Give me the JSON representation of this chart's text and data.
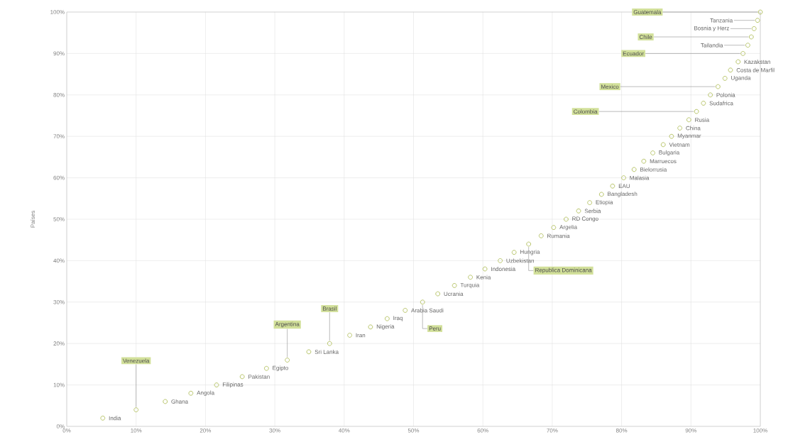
{
  "chart_data": {
    "type": "scatter",
    "ylabel": "Países",
    "xlim": [
      0,
      100
    ],
    "ylim": [
      0,
      100
    ],
    "xticks": [
      {
        "value": 0,
        "label": "0%"
      },
      {
        "value": 10,
        "label": "10%"
      },
      {
        "value": 20,
        "label": "20%"
      },
      {
        "value": 30,
        "label": "30%"
      },
      {
        "value": 40,
        "label": "40%"
      },
      {
        "value": 50,
        "label": "50%"
      },
      {
        "value": 60,
        "label": "60%"
      },
      {
        "value": 70,
        "label": "70%"
      },
      {
        "value": 80,
        "label": "80%"
      },
      {
        "value": 90,
        "label": "90%"
      },
      {
        "value": 100,
        "label": "100%"
      }
    ],
    "yticks": [
      {
        "value": 0,
        "label": "0%"
      },
      {
        "value": 10,
        "label": "10%"
      },
      {
        "value": 20,
        "label": "20%"
      },
      {
        "value": 30,
        "label": "30%"
      },
      {
        "value": 40,
        "label": "40%"
      },
      {
        "value": 50,
        "label": "50%"
      },
      {
        "value": 60,
        "label": "60%"
      },
      {
        "value": 70,
        "label": "70%"
      },
      {
        "value": 80,
        "label": "80%"
      },
      {
        "value": 90,
        "label": "90%"
      },
      {
        "value": 100,
        "label": "100%"
      }
    ],
    "grid": true,
    "marker": "circle",
    "series": [
      {
        "color": "#a8b84a",
        "x": [
          5.2,
          10.0,
          14.2,
          17.9,
          21.6,
          25.3,
          28.8,
          31.8,
          34.9,
          37.9,
          40.8,
          43.8,
          46.2,
          48.8,
          51.3,
          53.5,
          55.9,
          58.2,
          60.3,
          62.5,
          64.5,
          66.6,
          68.4,
          70.2,
          72.0,
          73.8,
          75.4,
          77.1,
          78.7,
          80.3,
          81.8,
          83.2,
          84.5,
          86.0,
          87.2,
          88.4,
          89.7,
          90.8,
          91.8,
          92.8,
          93.9,
          94.9,
          95.7,
          96.8,
          97.5,
          98.2,
          98.7,
          99.1,
          99.6,
          100
        ],
        "values": [
          2,
          4,
          6,
          8,
          10,
          12,
          14,
          16,
          18,
          20,
          22,
          24,
          26,
          28,
          30,
          32,
          34,
          36,
          38,
          40,
          42,
          44,
          46,
          48,
          50,
          52,
          54,
          56,
          58,
          60,
          62,
          64,
          66,
          68,
          70,
          72,
          74,
          76,
          78,
          80,
          82,
          84,
          86,
          88,
          90,
          92,
          94,
          96,
          98,
          100
        ],
        "value_labels": [
          "India",
          null,
          "Ghana",
          "Angola",
          "Filipinas",
          "Pakistan",
          "Egipto",
          null,
          "Sri Lanka",
          null,
          "Iran",
          "Nigeria",
          "Iraq",
          "Arabia Saudi",
          null,
          "Ucrania",
          "Turquia",
          "Kenia",
          "Indonesia",
          "Uzbekistan",
          "Hungria",
          null,
          "Rumania",
          "Argelia",
          "RD Congo",
          "Serbia",
          "Etiopia",
          "Bangladesh",
          "EAU",
          "Malasia",
          "Bielorrusia",
          "Marruecos",
          "Bulgaria",
          "Vietnam",
          "Myanmar",
          "China",
          "Rusia",
          null,
          "Sudafrica",
          "Polonia",
          null,
          "Uganda",
          "Costa de Marfil",
          "Kazakstan",
          null,
          "Tailandia",
          null,
          "Bosnia y Herz",
          "Tanzania",
          null
        ]
      }
    ],
    "annotations": [
      {
        "text": "Venezuela",
        "x": 10.0,
        "y": 4
      },
      {
        "text": "Argentina",
        "x": 31.8,
        "y": 16
      },
      {
        "text": "Brasil",
        "x": 37.9,
        "y": 20
      },
      {
        "text": "Peru",
        "x": 51.3,
        "y": 30
      },
      {
        "text": "Republica Dominicana",
        "x": 66.6,
        "y": 44
      },
      {
        "text": "Colombia",
        "x": 90.8,
        "y": 76
      },
      {
        "text": "Mexico",
        "x": 93.9,
        "y": 82
      },
      {
        "text": "Ecuador",
        "x": 97.5,
        "y": 90
      },
      {
        "text": "Chile",
        "x": 98.7,
        "y": 94
      },
      {
        "text": "Guatemala",
        "x": 100,
        "y": 100
      }
    ]
  }
}
